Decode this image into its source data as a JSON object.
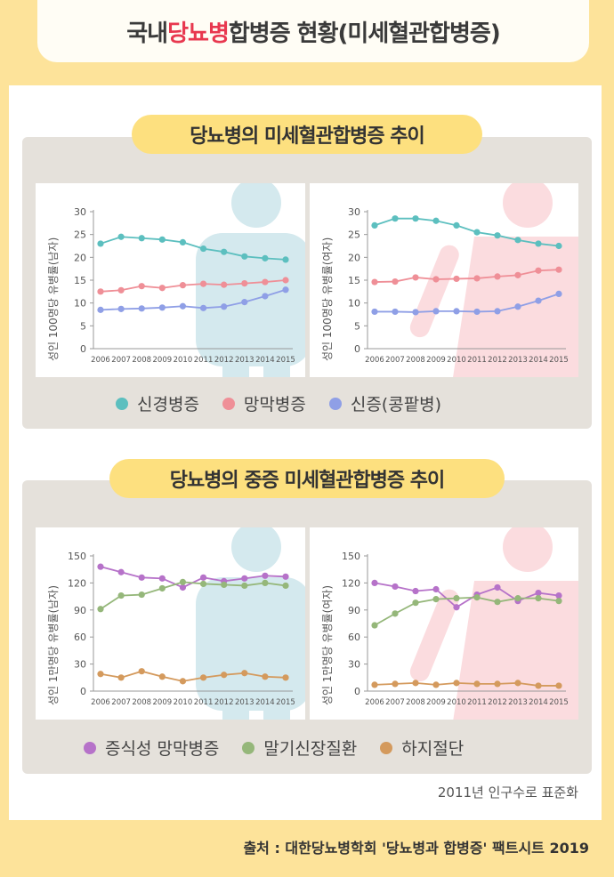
{
  "title": {
    "pre": "국내 ",
    "highlight": "당뇨병",
    "post": " 합병증 현황(미세혈관합병증)"
  },
  "section1": {
    "title": "당뇨병의 미세혈관합병증 추이",
    "legend": [
      {
        "label": "신경병증",
        "color": "#5cbfbf"
      },
      {
        "label": "망막병증",
        "color": "#ef8f97"
      },
      {
        "label": "신증(콩팥병)",
        "color": "#8f9fe6"
      }
    ]
  },
  "section2": {
    "title": "당뇨병의 중증 미세혈관합병증 추이",
    "legend": [
      {
        "label": "증식성 망막병증",
        "color": "#b672c9"
      },
      {
        "label": "말기신장질환",
        "color": "#95b77a"
      },
      {
        "label": "하지절단",
        "color": "#d49a5d"
      }
    ]
  },
  "standardization": "2011년 인구수로 표준화",
  "source": "출처 : 대한당뇨병학회 '당뇨병과 합병증' 팩트시트 2019",
  "chart_data": [
    {
      "type": "line",
      "ylabel": "성인 100명당 유병률(남자)",
      "x": [
        "2006",
        "2007",
        "2008",
        "2009",
        "2010",
        "2011",
        "2012",
        "2013",
        "2014",
        "2015"
      ],
      "ylim": [
        0,
        30
      ],
      "yticks": [
        0,
        5,
        10,
        15,
        20,
        25,
        30
      ],
      "series": [
        {
          "name": "신경병증",
          "color": "#5cbfbf",
          "values": [
            23,
            24.5,
            24.2,
            23.9,
            23.3,
            21.9,
            21.2,
            20.2,
            19.8,
            19.5
          ]
        },
        {
          "name": "망막병증",
          "color": "#ef8f97",
          "values": [
            12.5,
            12.8,
            13.7,
            13.3,
            13.9,
            14.2,
            14.0,
            14.3,
            14.6,
            15.0
          ]
        },
        {
          "name": "신증(콩팥병)",
          "color": "#8f9fe6",
          "values": [
            8.5,
            8.7,
            8.8,
            9.0,
            9.3,
            8.9,
            9.2,
            10.2,
            11.5,
            12.9
          ]
        }
      ]
    },
    {
      "type": "line",
      "ylabel": "성인 100명당 유병률(여자)",
      "x": [
        "2006",
        "2007",
        "2008",
        "2009",
        "2010",
        "2011",
        "2012",
        "2013",
        "2014",
        "2015"
      ],
      "ylim": [
        0,
        30
      ],
      "yticks": [
        0,
        5,
        10,
        15,
        20,
        25,
        30
      ],
      "series": [
        {
          "name": "신경병증",
          "color": "#5cbfbf",
          "values": [
            27,
            28.5,
            28.5,
            28,
            27,
            25.5,
            24.8,
            23.8,
            23.0,
            22.5
          ]
        },
        {
          "name": "망막병증",
          "color": "#ef8f97",
          "values": [
            14.6,
            14.7,
            15.6,
            15.2,
            15.3,
            15.4,
            15.8,
            16.1,
            17.1,
            17.3
          ]
        },
        {
          "name": "신증(콩팥병)",
          "color": "#8f9fe6",
          "values": [
            8.1,
            8.1,
            8.0,
            8.2,
            8.2,
            8.1,
            8.2,
            9.2,
            10.5,
            12.0
          ]
        }
      ]
    },
    {
      "type": "line",
      "ylabel": "성인 1만명당 유병률(남자)",
      "x": [
        "2006",
        "2007",
        "2008",
        "2009",
        "2010",
        "2011",
        "2012",
        "2013",
        "2014",
        "2015"
      ],
      "ylim": [
        0,
        150
      ],
      "yticks": [
        0,
        30,
        60,
        90,
        120,
        150
      ],
      "series": [
        {
          "name": "증식성 망막병증",
          "color": "#b672c9",
          "values": [
            138,
            132,
            126,
            125,
            115,
            126,
            122,
            125,
            128,
            127
          ]
        },
        {
          "name": "말기신장질환",
          "color": "#95b77a",
          "values": [
            91,
            106,
            107,
            114,
            121,
            119,
            118,
            117,
            120,
            117
          ]
        },
        {
          "name": "하지절단",
          "color": "#d49a5d",
          "values": [
            19,
            15,
            22,
            16,
            11,
            15,
            18,
            20,
            16,
            15
          ]
        }
      ]
    },
    {
      "type": "line",
      "ylabel": "성인 1만명당 유병률(여자)",
      "x": [
        "2006",
        "2007",
        "2008",
        "2009",
        "2010",
        "2011",
        "2012",
        "2013",
        "2014",
        "2015"
      ],
      "ylim": [
        0,
        150
      ],
      "yticks": [
        0,
        30,
        60,
        90,
        120,
        150
      ],
      "series": [
        {
          "name": "증식성 망막병증",
          "color": "#b672c9",
          "values": [
            120,
            116,
            111,
            113,
            93,
            107,
            115,
            100,
            109,
            106
          ]
        },
        {
          "name": "말기신장질환",
          "color": "#95b77a",
          "values": [
            73,
            86,
            98,
            102,
            103,
            104,
            99,
            103,
            103,
            100
          ]
        },
        {
          "name": "하지절단",
          "color": "#d49a5d",
          "values": [
            7,
            8,
            9,
            7,
            9,
            8,
            8,
            9,
            6,
            6
          ]
        }
      ]
    }
  ]
}
